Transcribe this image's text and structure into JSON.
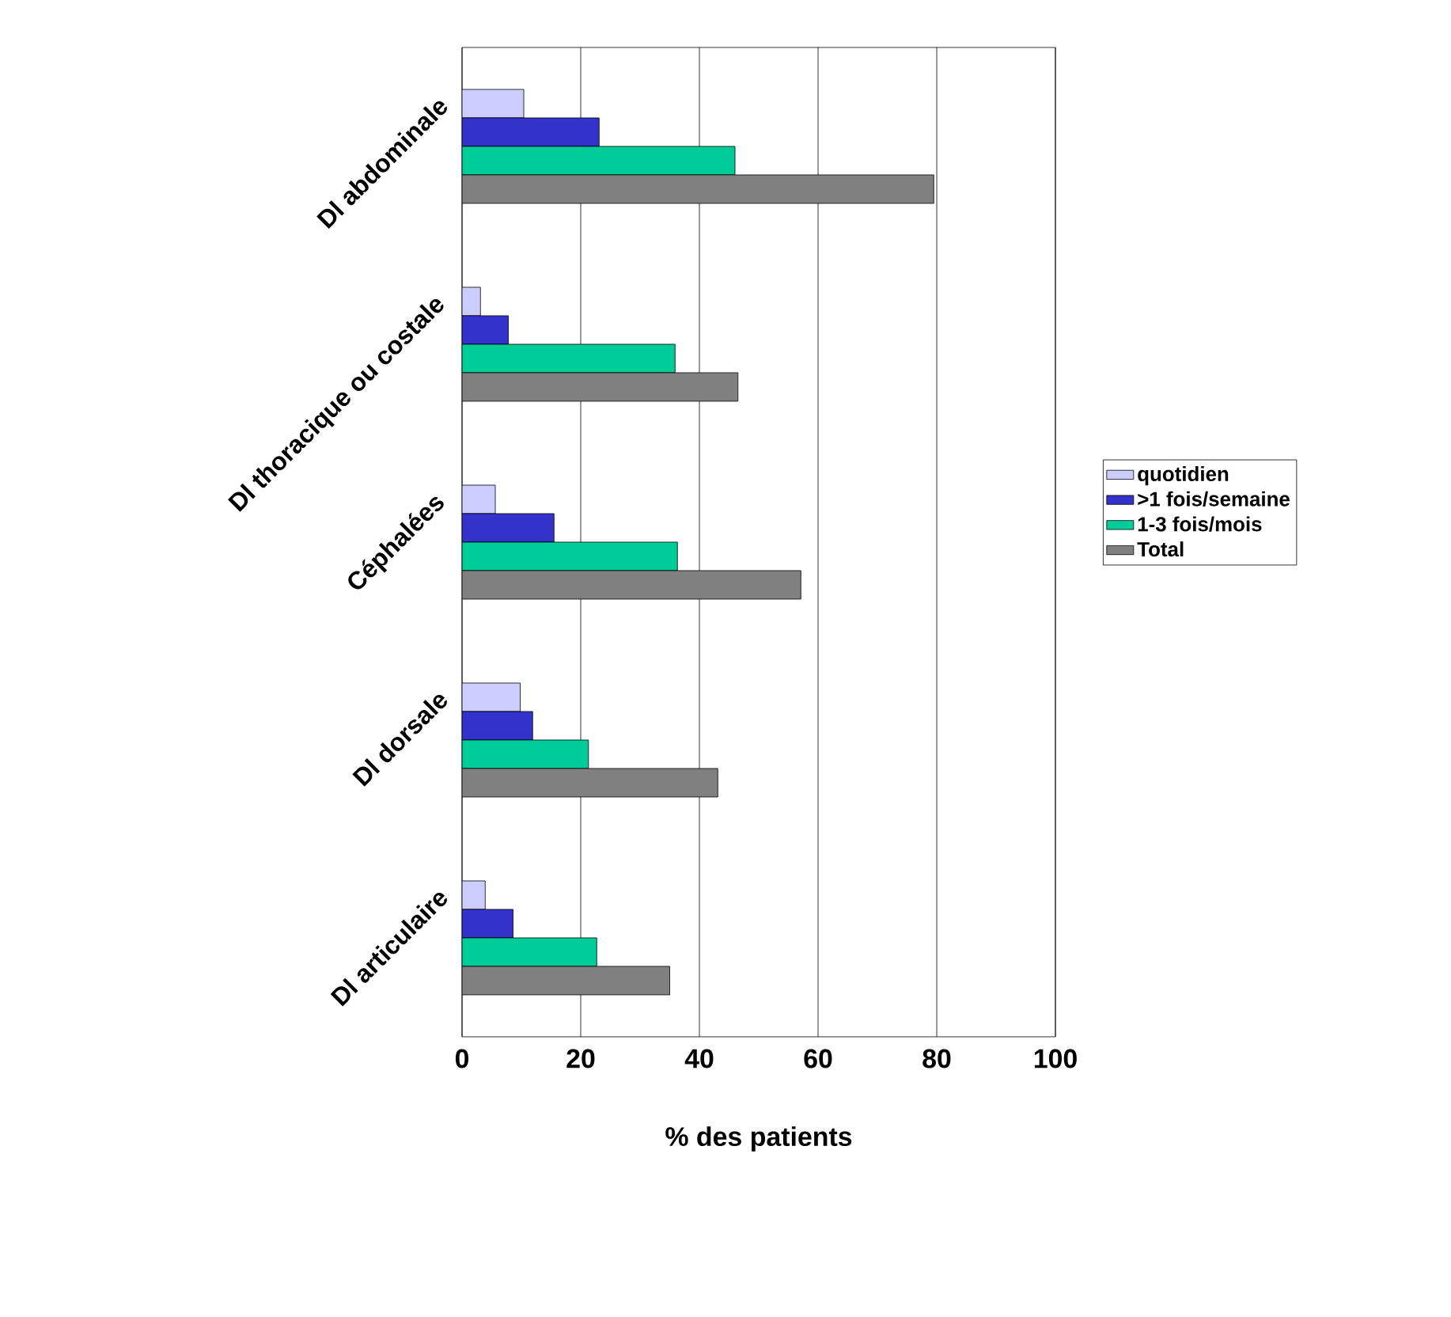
{
  "chart_data": {
    "type": "bar",
    "orientation": "horizontal",
    "categories": [
      "Dl abdominale",
      "Dl thoracique ou costale",
      "Céphalées",
      "Dl dorsale",
      "Dl articulaire"
    ],
    "series": [
      {
        "name": "quotidien",
        "color": "#ccccff",
        "values": [
          10.4,
          3.1,
          5.6,
          9.8,
          3.9
        ]
      },
      {
        "name": ">1 fois/semaine",
        "color": "#3333cc",
        "values": [
          23.1,
          7.8,
          15.5,
          11.9,
          8.6
        ]
      },
      {
        "name": "1-3 fois/mois",
        "color": "#00cc99",
        "values": [
          46,
          35.9,
          36.3,
          21.3,
          22.7
        ]
      },
      {
        "name": "Total",
        "color": "#808080",
        "values": [
          79.5,
          46.5,
          57.1,
          43.1,
          35
        ]
      }
    ],
    "xlim": [
      0,
      100
    ],
    "xticks": [
      0,
      20,
      40,
      60,
      80,
      100
    ],
    "xlabel": "%  des patients",
    "grid": "x",
    "legend": "right"
  }
}
